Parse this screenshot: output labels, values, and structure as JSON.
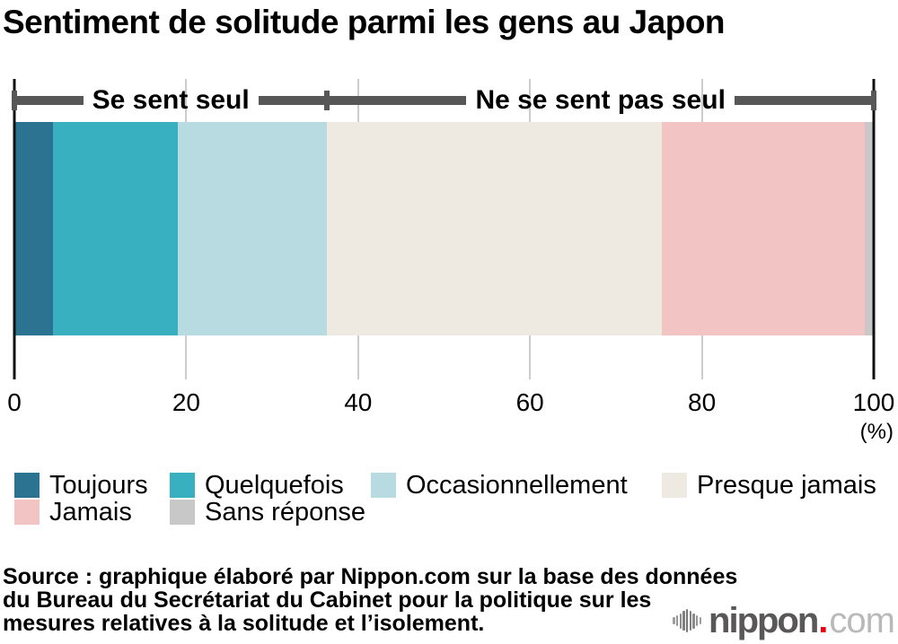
{
  "title": "Sentiment de solitude parmi les gens au Japon",
  "chart_data": {
    "type": "bar",
    "stacked": true,
    "orientation": "horizontal",
    "unit": "%",
    "categories": [
      "Toujours",
      "Quelquefois",
      "Occasionnellement",
      "Presque jamais",
      "Jamais",
      "Sans réponse"
    ],
    "values": [
      4.5,
      14.5,
      17.4,
      38.9,
      23.7,
      1.0
    ],
    "colors": [
      "#2b7390",
      "#39b0bf",
      "#b7dbe1",
      "#efeae1",
      "#f2c4c4",
      "#c8c8c8"
    ],
    "x_ticks": [
      0,
      20,
      40,
      60,
      80,
      100
    ],
    "xlim": [
      0,
      100
    ],
    "unit_label": "(%)",
    "grid": true,
    "legend_position": "bottom",
    "groups": [
      {
        "label": "Se sent seul",
        "from": 0,
        "to": 36.4
      },
      {
        "label": "Ne se sent pas seul",
        "from": 36.4,
        "to": 100
      }
    ]
  },
  "legend": {
    "rows": [
      [
        {
          "label": "Toujours",
          "color": "#2b7390"
        },
        {
          "label": "Quelquefois",
          "color": "#39b0bf"
        },
        {
          "label": "Occasionnellement",
          "color": "#b7dbe1"
        },
        {
          "label": "Presque jamais",
          "color": "#efeae1"
        }
      ],
      [
        {
          "label": "Jamais",
          "color": "#f2c4c4"
        },
        {
          "label": "Sans réponse",
          "color": "#c8c8c8"
        }
      ]
    ]
  },
  "source": {
    "lines": [
      "Source : graphique élaboré par Nippon.com sur la base des données",
      "du Bureau du Secrétariat du Cabinet pour la politique sur les",
      "mesures relatives à la solitude et l’isolement."
    ]
  },
  "logo": {
    "word": "nippon",
    "dot": ".",
    "tld": "com"
  },
  "theme": {
    "accent_red": "#e60012",
    "axis_color": "#111111",
    "grid_color": "#cccccc",
    "bracket_color": "#575757"
  }
}
